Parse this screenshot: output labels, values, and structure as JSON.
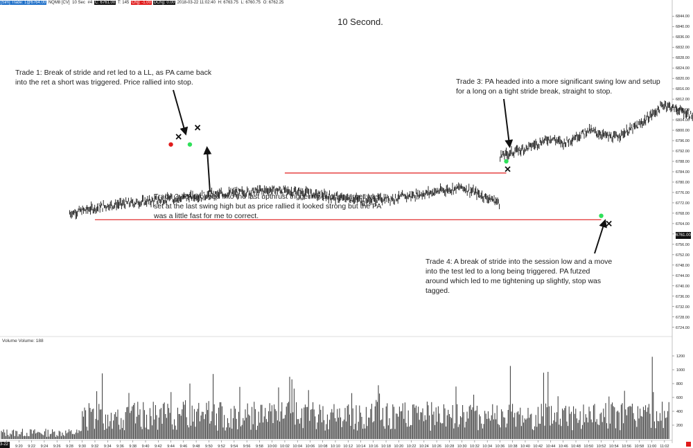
{
  "header": {
    "instrument": "[Sim] Trade: 1@6764.00",
    "symbol": "NQM8 [CV]",
    "interval": "10 Sec",
    "bars": "#4",
    "close": "C: 6761.00",
    "ticks": "T: 145",
    "change": "Chg: -1.00",
    "dchange": "DChg: 0.00",
    "datetime": "2018-03-22 11:02:40",
    "high": "H: 6763.75",
    "low": "L: 6760.75",
    "open": "O: 6762.25"
  },
  "title": "10 Second.",
  "notes": {
    "trade1": "Trade 1:  Break of stride and ret led to a LL, as PA came back into the ret a short was triggered.  Price rallied into stop.",
    "trade2": "Trade 2:  PA dropped into the last upthrust triggering a long, target was set at the last swing high but as price rallied it looked strong but the PA was a little fast for me to correct.",
    "trade3": "Trade 3:  PA headed into a more significant swing low and setup for a long on a tight stride break, straight to stop.",
    "trade4": "Trade 4:  A break of stride into the session low and a move into the test led to a long being triggered.  PA futzed around which led to me tightening up slightly, stop was tagged."
  },
  "volume_label": "Volume  Volume: 188",
  "last_price_tag": "6761.00",
  "date_corner": "3-22",
  "colors": {
    "bars": "#111111",
    "support_line": "#e01b1b",
    "long_entry": "#2fe05a",
    "short_entry": "#e01b1b",
    "exit_mark": "#111111"
  },
  "chart_data": [
    {
      "type": "candlestick",
      "title": "10 Second.",
      "y_axis_ticks": [
        6724,
        6728,
        6732,
        6736,
        6740,
        6744,
        6748,
        6752,
        6756,
        6760,
        6764,
        6768,
        6772,
        6776,
        6780,
        6784,
        6788,
        6792,
        6796,
        6800,
        6804,
        6808,
        6812,
        6816,
        6820,
        6824,
        6828,
        6832,
        6836,
        6840,
        6844
      ],
      "y_axis_labels": [
        "6724.00",
        "6728.00",
        "6732.00",
        "6736.00",
        "6740.00",
        "6744.00",
        "6748.00",
        "6752.00",
        "6756.00",
        "6760.00",
        "6764.00",
        "6768.00",
        "6772.00",
        "6776.00",
        "6780.00",
        "6784.00",
        "6788.00",
        "6792.00",
        "6796.00",
        "6800.00",
        "6804.00",
        "6808.00",
        "6812.00",
        "6816.00",
        "6820.00",
        "6824.00",
        "6828.00",
        "6832.00",
        "6836.00",
        "6840.00",
        "6844.00"
      ],
      "ylim": [
        6721,
        6847
      ],
      "x_tick_labels": [
        "9:18",
        "9:20",
        "9:22",
        "9:24",
        "9:26",
        "9:28",
        "9:30",
        "9:32",
        "9:34",
        "9:36",
        "9:38",
        "9:40",
        "9:42",
        "9:44",
        "9:46",
        "9:48",
        "9:50",
        "9:52",
        "9:54",
        "9:56",
        "9:58",
        "10:00",
        "10:02",
        "10:04",
        "10:06",
        "10:08",
        "10:10",
        "10:12",
        "10:14",
        "10:16",
        "10:18",
        "10:20",
        "10:22",
        "10:24",
        "10:26",
        "10:28",
        "10:30",
        "10:32",
        "10:34",
        "10:36",
        "10:38",
        "10:40",
        "10:42",
        "10:44",
        "10:46",
        "10:48",
        "10:50",
        "10:52",
        "10:54",
        "10:56",
        "10:58",
        "11:00",
        "11:02"
      ],
      "price_path_minutes_close": [
        [
          9.28,
          6768
        ],
        [
          9.3,
          6769
        ],
        [
          9.34,
          6771
        ],
        [
          9.38,
          6772
        ],
        [
          9.42,
          6773
        ],
        [
          9.46,
          6774
        ],
        [
          9.5,
          6775
        ],
        [
          9.55,
          6776
        ],
        [
          9.6,
          6777
        ],
        [
          9.65,
          6776
        ],
        [
          9.7,
          6774
        ],
        [
          9.75,
          6773
        ],
        [
          9.8,
          6774
        ],
        [
          9.85,
          6776
        ],
        [
          9.9,
          6778
        ],
        [
          9.92,
          6776
        ],
        [
          9.96,
          6772
        ],
        [
          10.0,
          6768
        ],
        [
          10.02,
          6765
        ],
        [
          10.05,
          6770
        ],
        [
          10.1,
          6778
        ],
        [
          10.14,
          6786
        ],
        [
          10.18,
          6792
        ],
        [
          10.22,
          6797
        ],
        [
          10.26,
          6801
        ],
        [
          10.3,
          6804
        ],
        [
          10.33,
          6798
        ],
        [
          10.36,
          6790
        ],
        [
          10.4,
          6793
        ],
        [
          10.44,
          6797
        ],
        [
          10.46,
          6795
        ],
        [
          10.5,
          6800
        ],
        [
          10.54,
          6797
        ],
        [
          10.58,
          6802
        ],
        [
          10.62,
          6810
        ],
        [
          10.66,
          6806
        ],
        [
          10.7,
          6801
        ],
        [
          10.74,
          6797
        ],
        [
          10.78,
          6793
        ],
        [
          10.82,
          6795
        ],
        [
          10.86,
          6790
        ],
        [
          10.9,
          6787
        ],
        [
          10.93,
          6784
        ],
        [
          10.96,
          6785
        ],
        [
          11.0,
          6790
        ],
        [
          11.04,
          6801
        ],
        [
          11.08,
          6804
        ],
        [
          11.12,
          6800
        ],
        [
          11.16,
          6806
        ],
        [
          11.2,
          6812
        ],
        [
          11.25,
          6819
        ],
        [
          11.3,
          6824
        ],
        [
          11.35,
          6822
        ],
        [
          11.4,
          6817
        ],
        [
          11.45,
          6814
        ],
        [
          11.5,
          6813
        ],
        [
          11.55,
          6810
        ],
        [
          11.6,
          6809
        ],
        [
          11.64,
          6804
        ],
        [
          11.68,
          6806
        ],
        [
          11.72,
          6800
        ],
        [
          11.76,
          6804
        ],
        [
          11.8,
          6810
        ],
        [
          11.84,
          6806
        ],
        [
          11.88,
          6801
        ],
        [
          11.92,
          6797
        ],
        [
          11.96,
          6794
        ],
        [
          12.0,
          6791
        ],
        [
          12.04,
          6788
        ],
        [
          12.08,
          6786
        ],
        [
          12.12,
          6790
        ],
        [
          12.16,
          6793
        ],
        [
          12.2,
          6788
        ],
        [
          12.24,
          6782
        ],
        [
          12.28,
          6787
        ],
        [
          12.32,
          6792
        ],
        [
          12.36,
          6791
        ],
        [
          12.4,
          6788
        ],
        [
          12.44,
          6785
        ],
        [
          12.48,
          6781
        ],
        [
          12.52,
          6776
        ],
        [
          12.56,
          6771
        ],
        [
          12.6,
          6766
        ],
        [
          12.64,
          6770
        ],
        [
          12.68,
          6767
        ],
        [
          12.72,
          6766
        ],
        [
          12.76,
          6770
        ],
        [
          12.8,
          6775
        ],
        [
          12.84,
          6770
        ],
        [
          12.88,
          6766
        ],
        [
          12.92,
          6768
        ],
        [
          12.96,
          6764
        ],
        [
          13.0,
          6760
        ],
        [
          13.04,
          6756
        ],
        [
          13.08,
          6752
        ],
        [
          13.12,
          6748
        ],
        [
          13.16,
          6753
        ],
        [
          13.2,
          6757
        ],
        [
          13.24,
          6762
        ],
        [
          13.28,
          6768
        ],
        [
          13.3,
          6764
        ],
        [
          13.32,
          6761
        ]
      ],
      "volume_y_ticks": [
        200,
        400,
        600,
        800,
        1000,
        1200
      ],
      "volume_ylim": [
        0,
        1400
      ],
      "horizontal_levels": [
        {
          "price": 6783.5,
          "from": "10:02",
          "to": "10:37"
        },
        {
          "price": 6765.5,
          "from": "9:32",
          "to": "10:52"
        }
      ],
      "markers": [
        {
          "kind": "short_entry",
          "time": "9:44",
          "price": 6794.5
        },
        {
          "kind": "exit",
          "time": "9:45",
          "price": 6797.5
        },
        {
          "kind": "long_entry",
          "time": "9:47",
          "price": 6794.5
        },
        {
          "kind": "exit",
          "time": "9:48",
          "price": 6801
        },
        {
          "kind": "long_entry",
          "time": "10:37",
          "price": 6788
        },
        {
          "kind": "exit",
          "time": "10:37",
          "price": 6785
        },
        {
          "kind": "long_entry",
          "time": "10:52",
          "price": 6767
        },
        {
          "kind": "exit",
          "time": "10:53",
          "price": 6764
        }
      ]
    }
  ]
}
